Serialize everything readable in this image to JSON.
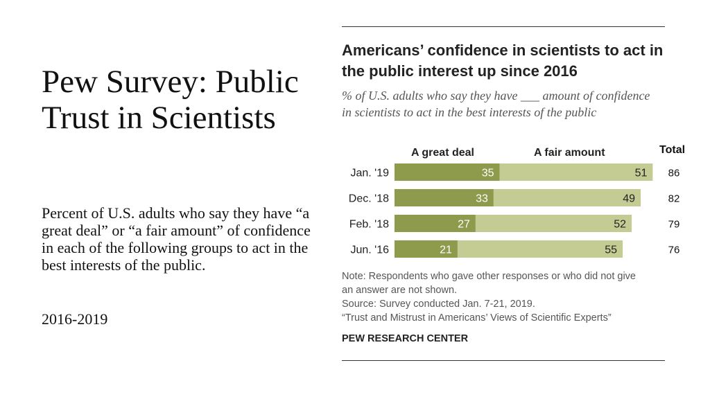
{
  "slide": {
    "title": "Pew Survey: Public Trust in Scientists",
    "description": "Percent of U.S. adults who say they have “a great deal” or “a fair amount” of confidence in each of the following groups to act in the best interests of the public.",
    "years": "2016-2019"
  },
  "chart_data": {
    "type": "bar",
    "stacked": true,
    "orientation": "horizontal",
    "title": "Americans’ confidence in scientists to act in the public interest up since 2016",
    "subtitle": "% of U.S. adults who say they have ___ amount of confidence in scientists to act in the best interests of the public",
    "categories": [
      "Jan. '19",
      "Dec. '18",
      "Feb. '18",
      "Jun. '16"
    ],
    "series": [
      {
        "name": "A great deal",
        "values": [
          35,
          33,
          27,
          21
        ],
        "color": "#8e9a4c"
      },
      {
        "name": "A fair amount",
        "values": [
          51,
          49,
          52,
          55
        ],
        "color": "#c4cc94"
      }
    ],
    "total_label": "Total",
    "totals": [
      86,
      82,
      79,
      76
    ],
    "notes": [
      "Note: Respondents who gave other responses or who did not give",
      "an answer are not shown.",
      "Source: Survey conducted Jan. 7-21, 2019.",
      "“Trust and Mistrust in Americans’ Views of Scientific Experts”"
    ],
    "source_org": "PEW RESEARCH CENTER"
  }
}
